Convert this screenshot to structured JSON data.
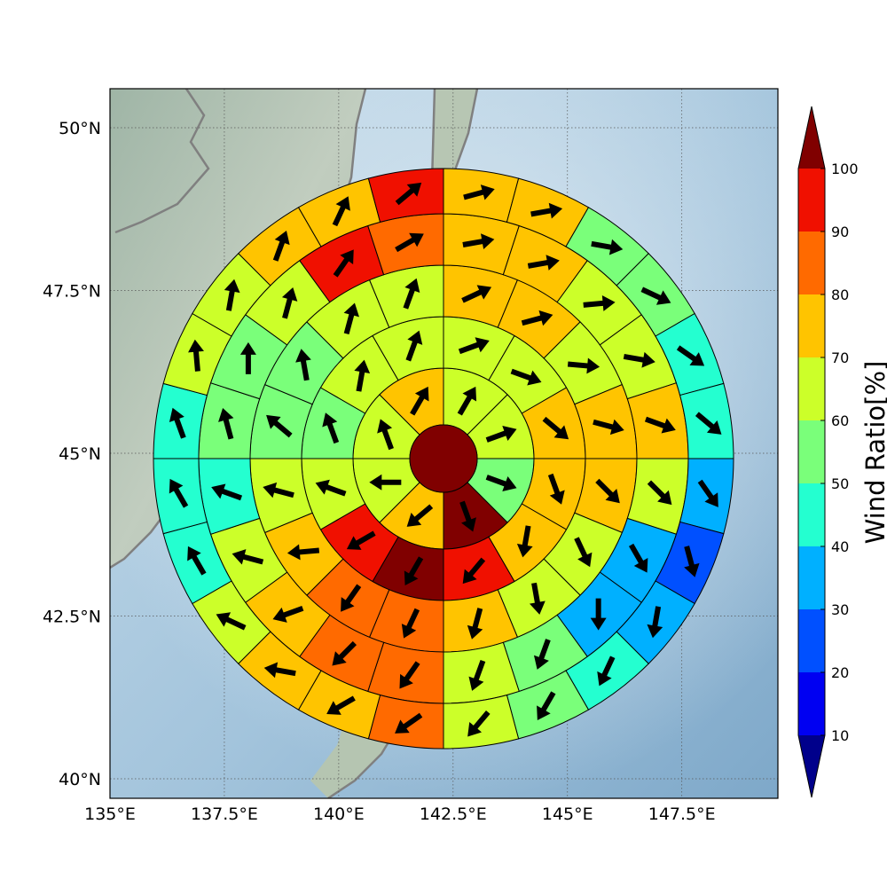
{
  "chart_data": {
    "type": "polar-sector-map",
    "title": "",
    "xlabel": "",
    "ylabel": "",
    "x_ticks": [
      "135°E",
      "137.5°E",
      "140°E",
      "142.5°E",
      "145°E",
      "147.5°E"
    ],
    "y_ticks": [
      "50°N",
      "47.5°N",
      "45°N",
      "42.5°N",
      "40°N"
    ],
    "xlim": [
      135.0,
      149.6
    ],
    "ylim": [
      39.7,
      50.6
    ],
    "grid": true,
    "center_value": 100,
    "center_arrow_deg": null,
    "rings": [
      {
        "ring": 1,
        "sectors": 8,
        "values": [
          65,
          65,
          55,
          100,
          75,
          65,
          65,
          75
        ],
        "arrow_deg": [
          60,
          20,
          -20,
          -70,
          220,
          180,
          110,
          60
        ]
      },
      {
        "ring": 2,
        "sectors": 12,
        "values": [
          65,
          65,
          75,
          75,
          75,
          95,
          100,
          95,
          65,
          55,
          65,
          65
        ],
        "arrow_deg": [
          20,
          -20,
          -40,
          -70,
          -100,
          -130,
          240,
          210,
          160,
          110,
          80,
          70
        ]
      },
      {
        "ring": 3,
        "sectors": 16,
        "values": [
          75,
          75,
          65,
          75,
          75,
          65,
          65,
          75,
          85,
          85,
          75,
          65,
          55,
          55,
          65,
          65
        ],
        "arrow_deg": [
          25,
          15,
          -5,
          -15,
          -45,
          -65,
          -80,
          -105,
          245,
          235,
          185,
          165,
          140,
          100,
          75,
          70
        ]
      },
      {
        "ring": 4,
        "sectors": 20,
        "values": [
          75,
          75,
          65,
          65,
          75,
          65,
          35,
          35,
          55,
          65,
          85,
          85,
          75,
          65,
          45,
          55,
          55,
          65,
          95,
          85
        ],
        "arrow_deg": [
          10,
          10,
          5,
          -10,
          -20,
          -45,
          -60,
          -90,
          -110,
          -110,
          235,
          225,
          200,
          165,
          160,
          105,
          90,
          75,
          55,
          30
        ]
      },
      {
        "ring": 5,
        "sectors": 24,
        "values": [
          75,
          75,
          55,
          55,
          45,
          45,
          35,
          25,
          35,
          45,
          55,
          65,
          85,
          75,
          75,
          65,
          45,
          45,
          45,
          65,
          65,
          75,
          75,
          95
        ],
        "arrow_deg": [
          15,
          10,
          -10,
          -25,
          -35,
          -40,
          -55,
          -75,
          -100,
          -115,
          -120,
          230,
          215,
          210,
          170,
          155,
          120,
          120,
          110,
          95,
          80,
          70,
          65,
          40
        ]
      }
    ]
  },
  "colorbar": {
    "label": "Wind Ratio[%]",
    "ticks": [
      "10",
      "20",
      "30",
      "40",
      "50",
      "60",
      "70",
      "80",
      "90",
      "100"
    ],
    "tick_values": [
      10,
      20,
      30,
      40,
      50,
      60,
      70,
      80,
      90,
      100
    ],
    "colors": [
      "#00008b",
      "#0000f2",
      "#0050ff",
      "#00b0ff",
      "#24ffd0",
      "#7aff7a",
      "#ccff29",
      "#ffc400",
      "#ff6a00",
      "#f01000",
      "#800000"
    ]
  }
}
